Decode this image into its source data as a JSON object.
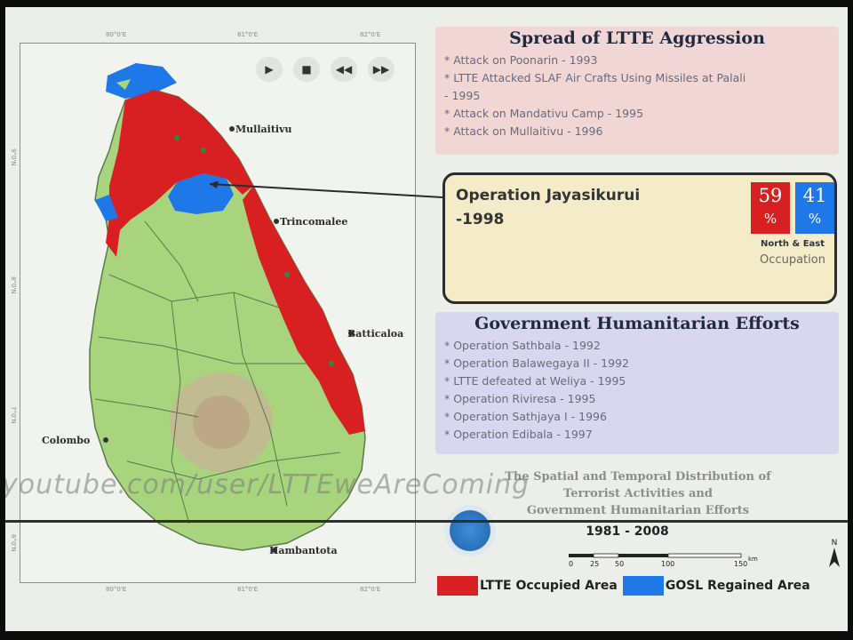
{
  "colors": {
    "ltte_red": "#d81f21",
    "gosl_blue": "#1f78e8",
    "land_green": "#a8d47e",
    "aggression_panel": "#f0d6d5",
    "humanitarian_panel": "#d8d7ef",
    "operation_panel": "#f4ecc9"
  },
  "player_controls": [
    {
      "name": "play-icon",
      "glyph": "▶"
    },
    {
      "name": "stop-icon",
      "glyph": "■"
    },
    {
      "name": "rewind-icon",
      "glyph": "◀◀"
    },
    {
      "name": "fast-forward-icon",
      "glyph": "▶▶"
    }
  ],
  "map": {
    "places": [
      "Mullaitivu",
      "Trincomalee",
      "Batticaloa",
      "Colombo",
      "Hambantota"
    ],
    "grid_ticks": [
      "80°0'E",
      "81°0'E",
      "82°0'E",
      "9°0'N",
      "8°0'N",
      "7°0'N",
      "6°0'N"
    ]
  },
  "aggression": {
    "title": "Spread of LTTE Aggression",
    "items": [
      "* Attack on Poonarin - 1993",
      "* LTTE Attacked SLAF Air Crafts Using Missiles at Palali",
      "- 1995",
      "* Attack on Mandativu Camp - 1995",
      "* Attack on Mullaitivu - 1996"
    ]
  },
  "operation": {
    "title_line1": "Operation Jayasikurui",
    "title_line2": "-1998",
    "ltte_pct": "59",
    "gosl_pct": "41",
    "pct_sign": "%",
    "occupation_l1": "North & East",
    "occupation_l2": "Occupation"
  },
  "humanitarian": {
    "title": "Government Humanitarian Efforts",
    "items": [
      "* Operation Sathbala - 1992",
      "* Operation Balawegaya II - 1992",
      "* LTTE defeated at Weliya - 1995",
      "* Operation Riviresa - 1995",
      "* Operation Sathjaya I - 1996",
      "* Operation Edibala - 1997"
    ]
  },
  "footer": {
    "subtitle_l1": "The Spatial and Temporal Distribution of",
    "subtitle_l2": "Terrorist Activities and",
    "subtitle_l3": "Government Humanitarian Efforts",
    "years": "1981 - 2008",
    "scale_ticks": [
      "0",
      "25",
      "50",
      "100",
      "150"
    ],
    "scale_unit": "km",
    "north": "N"
  },
  "legend": {
    "ltte": "LTTE Occupied Area",
    "gosl": "GOSL Regained Area"
  },
  "watermark": "youtube.com/user/LTTEweAreComing"
}
